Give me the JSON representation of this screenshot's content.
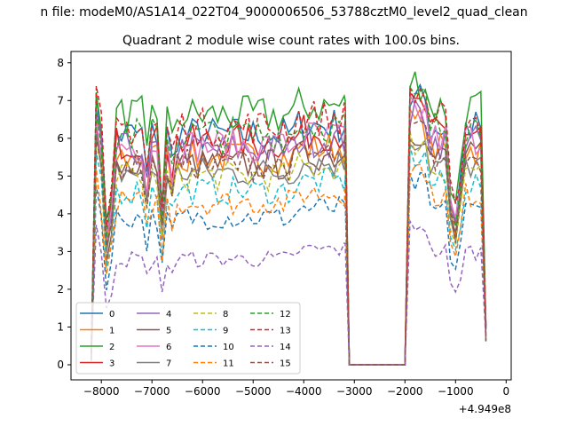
{
  "figure": {
    "suptitle": "n file: modeM0/AS1A14_022T04_9000006506_53788cztM0_level2_quad_clean",
    "offset_label": "+4.949e8"
  },
  "chart_data": {
    "type": "line",
    "title": "Quadrant 2 module wise count rates with 100.0s bins.",
    "xlabel": "",
    "ylabel": "",
    "xlim": [
      -8600,
      100
    ],
    "ylim": [
      -0.4,
      8.3
    ],
    "x_ticks": [
      -8000,
      -7000,
      -6000,
      -5000,
      -4000,
      -3000,
      -2000,
      -1000,
      0
    ],
    "x_tick_labels": [
      "−8000",
      "−7000",
      "−6000",
      "−5000",
      "−4000",
      "−3000",
      "−2000",
      "−1000",
      "0"
    ],
    "y_ticks": [
      0,
      1,
      2,
      3,
      4,
      5,
      6,
      7,
      8
    ],
    "y_tick_labels": [
      "0",
      "1",
      "2",
      "3",
      "4",
      "5",
      "6",
      "7",
      "8"
    ],
    "grid": false,
    "legend_position": "lower-left",
    "legend_columns": 4,
    "x_offset": 494900000,
    "bin_seconds": 100,
    "segments": [
      {
        "x": [
          -8200,
          -8100,
          -8000,
          -7900,
          -7800,
          -7700,
          -7600,
          -7500,
          -7400,
          -7300,
          -7200,
          -7100,
          -7000,
          -6900,
          -6800,
          -6700,
          -6600,
          -6500,
          -6400,
          -6300,
          -6200,
          -6100,
          -6000,
          -5900,
          -5800,
          -5700,
          -5600,
          -5500,
          -5400,
          -5300,
          -5200,
          -5100,
          -5000,
          -4900,
          -4800,
          -4700,
          -4600,
          -4500,
          -4400,
          -4300,
          -4200,
          -4100,
          -4000,
          -3900,
          -3800,
          -3700,
          -3600,
          -3500,
          -3400,
          -3300,
          -3200
        ]
      },
      {
        "x": [
          -3100,
          -3000,
          -2900,
          -2800,
          -2700,
          -2600,
          -2500,
          -2400,
          -2300,
          -2200,
          -2100,
          -2000
        ]
      },
      {
        "x": [
          -1900,
          -1800,
          -1700,
          -1600,
          -1500,
          -1400,
          -1300,
          -1200,
          -1100,
          -1000,
          -900,
          -800,
          -700,
          -600,
          -500,
          -400
        ]
      }
    ],
    "series": [
      {
        "name": "0",
        "color": "#1f77b4",
        "dash": "solid",
        "level": 6.1
      },
      {
        "name": "1",
        "color": "#ff7f0e",
        "dash": "solid",
        "level": 5.5
      },
      {
        "name": "2",
        "color": "#2ca02c",
        "dash": "solid",
        "level": 6.6
      },
      {
        "name": "3",
        "color": "#d62728",
        "dash": "solid",
        "level": 5.9
      },
      {
        "name": "4",
        "color": "#9467bd",
        "dash": "solid",
        "level": 5.7
      },
      {
        "name": "5",
        "color": "#8c564b",
        "dash": "solid",
        "level": 5.3
      },
      {
        "name": "6",
        "color": "#e377c2",
        "dash": "solid",
        "level": 5.8
      },
      {
        "name": "7",
        "color": "#7f7f7f",
        "dash": "solid",
        "level": 5.1
      },
      {
        "name": "8",
        "color": "#bcbd22",
        "dash": "dashed",
        "level": 5.0
      },
      {
        "name": "9",
        "color": "#17becf",
        "dash": "dashed",
        "level": 4.6
      },
      {
        "name": "10",
        "color": "#1f77b4",
        "dash": "dashed",
        "level": 3.9
      },
      {
        "name": "11",
        "color": "#ff7f0e",
        "dash": "dashed",
        "level": 4.3
      },
      {
        "name": "12",
        "color": "#2ca02c",
        "dash": "dashed",
        "level": 6.1
      },
      {
        "name": "13",
        "color": "#d62728",
        "dash": "dashed",
        "level": 6.3
      },
      {
        "name": "14",
        "color": "#9467bd",
        "dash": "dashed",
        "level": 2.8
      },
      {
        "name": "15",
        "color": "#8c564b",
        "dash": "dashed",
        "level": 5.3
      }
    ]
  }
}
